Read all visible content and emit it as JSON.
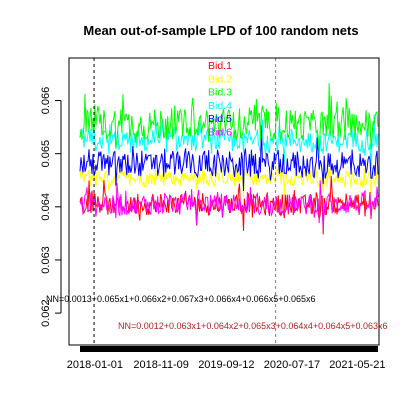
{
  "chart_data": {
    "type": "line",
    "title": "Mean out-of-sample LPD of  100  random nets",
    "xlabel": "",
    "ylabel": "",
    "x_tick_labels": [
      "2018-01-01",
      "2018-11-09",
      "2019-09-12",
      "2020-07-17",
      "2021-05-21"
    ],
    "y_tick_labels": [
      "0.062",
      "0.063",
      "0.064",
      "0.065",
      "0.066"
    ],
    "ylim": [
      0.0614,
      0.0668
    ],
    "x_range": [
      "2017-09-01",
      "2021-08-31"
    ],
    "grid": false,
    "legend_position": "top-center",
    "series": [
      {
        "name": "Bid.1",
        "color": "#ff0000",
        "base": 0.06405,
        "noise": 0.0002
      },
      {
        "name": "Bid.2",
        "color": "#ffff00",
        "base": 0.06455,
        "noise": 0.00015
      },
      {
        "name": "Bid.3",
        "color": "#00ff00",
        "base": 0.06555,
        "noise": 0.0003
      },
      {
        "name": "Bid.4",
        "color": "#00ffff",
        "base": 0.06525,
        "noise": 0.0002
      },
      {
        "name": "Bid.5",
        "color": "#0000ff",
        "base": 0.0648,
        "noise": 0.00025
      },
      {
        "name": "Bid.6",
        "color": "#ff00ff",
        "base": 0.06405,
        "noise": 0.0002
      }
    ],
    "vertical_lines": [
      {
        "date": "2017-12-28",
        "style": "dashed",
        "color": "#000000"
      },
      {
        "date": "2020-05-01",
        "style": "dashed",
        "color": "#cd5c5c"
      }
    ],
    "annotations": [
      {
        "text": "NN=0.0013+0.065x1+0.066x2+0.067x3+0.066x4+0.066x5+0.065x6",
        "color": "#000000"
      },
      {
        "text": "NN=0.0012+0.063x1+0.064x2+0.065x3+0.064x4+0.064x5+0.063x6",
        "color": "#b22222"
      }
    ]
  }
}
